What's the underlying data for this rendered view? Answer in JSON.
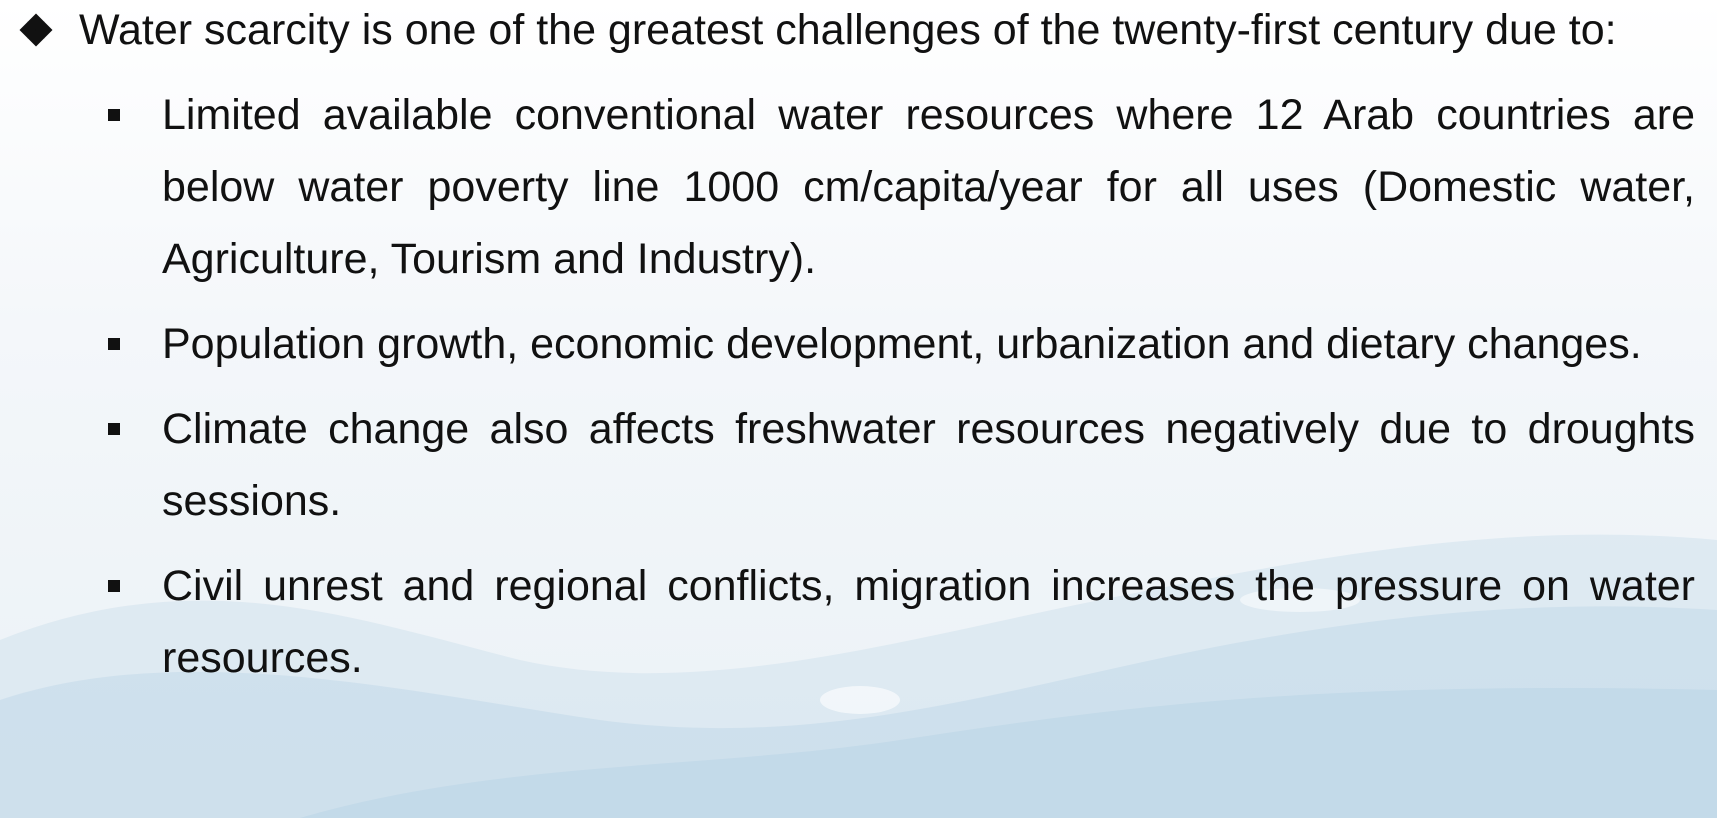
{
  "main": {
    "text": "Water scarcity is one of the greatest challenges of the twenty-first century due to:",
    "bullets": [
      "Limited available conventional water resources where 12 Arab countries are below water poverty line 1000 cm/capita/year for all uses (Domestic water, Agriculture, Tourism and Industry).",
      "Population growth, economic development, urbanization and dietary changes.",
      "Climate change also affects freshwater resources negatively due to droughts sessions.",
      "Civil unrest and regional conflicts, migration increases the pressure on water resources."
    ]
  }
}
